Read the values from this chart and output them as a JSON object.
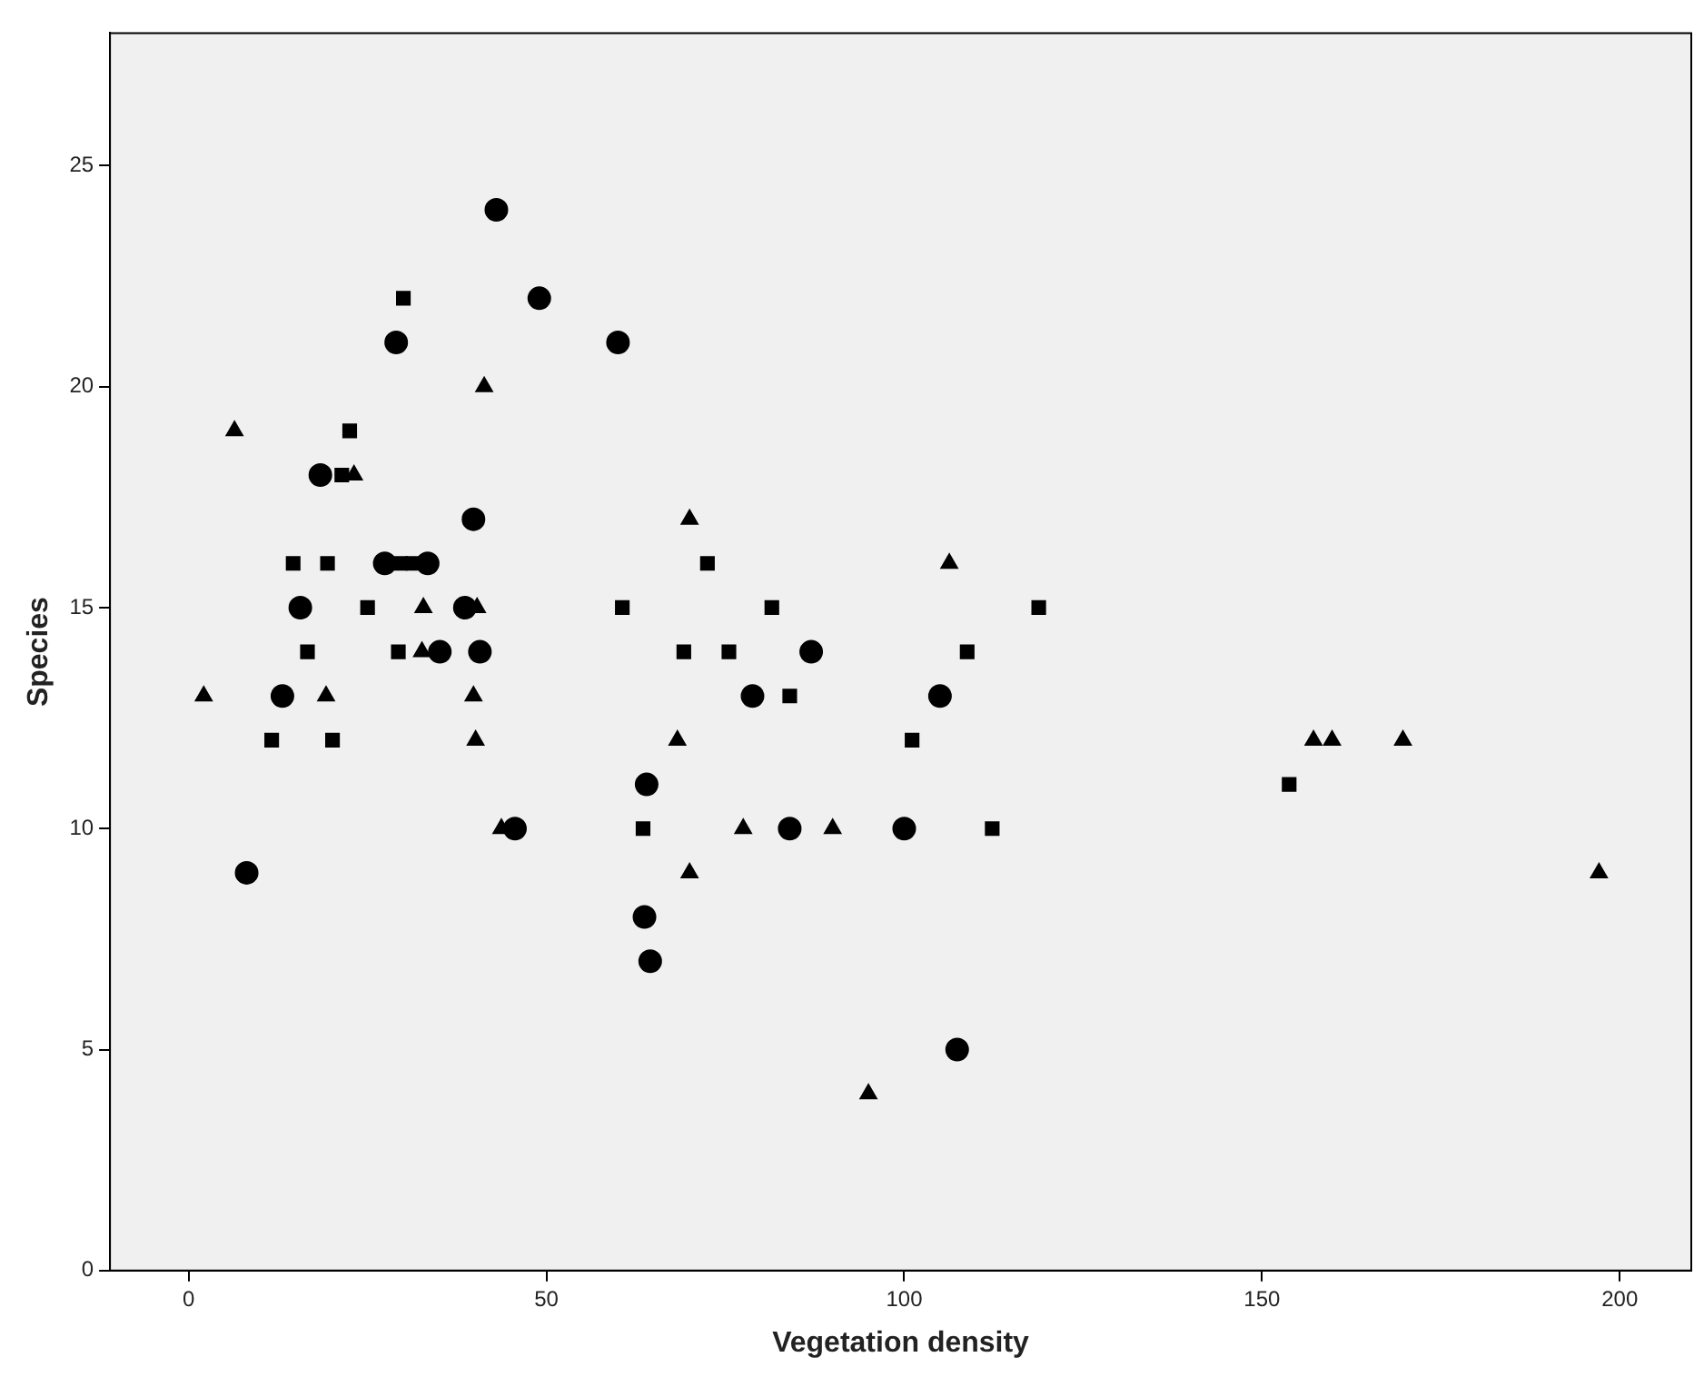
{
  "chart_data": {
    "type": "scatter",
    "xlabel": "Vegetation density",
    "ylabel": "Species",
    "xlim": [
      -11,
      210
    ],
    "ylim": [
      0,
      28
    ],
    "xticks": [
      0,
      50,
      100,
      150,
      200
    ],
    "yticks": [
      0,
      5,
      10,
      15,
      20,
      25
    ],
    "grid": false,
    "series": [
      {
        "color": "#000000",
        "marker": "circle",
        "x": [
          43,
          29,
          18.4,
          39.8,
          27.4,
          33.4,
          15.6,
          38.6,
          35.1,
          40.7,
          13.1,
          45.6,
          8.1,
          49,
          60,
          87,
          78.8,
          64,
          84,
          63.7,
          64.5,
          105,
          100,
          107.4
        ],
        "values": [
          24,
          21,
          18,
          17,
          16,
          16,
          15,
          15,
          14,
          14,
          13,
          10,
          9,
          22,
          21,
          14,
          13,
          11,
          10,
          8,
          7,
          13,
          10,
          5
        ]
      },
      {
        "color": "#000000",
        "marker": "square",
        "x": [
          30,
          22.5,
          21.4,
          14.6,
          19.4,
          29.6,
          31.3,
          25,
          16.6,
          29.3,
          11.6,
          20.1,
          72.5,
          60.6,
          81.5,
          69.2,
          75.5,
          84,
          63.5,
          118.8,
          108.8,
          101.1,
          112.3,
          153.8
        ],
        "values": [
          22,
          19,
          18,
          16,
          16,
          16,
          16,
          15,
          14,
          14,
          12,
          12,
          16,
          15,
          15,
          14,
          14,
          13,
          10,
          15,
          14,
          12,
          10,
          11
        ]
      },
      {
        "color": "#000000",
        "marker": "triangle",
        "x": [
          41.3,
          6.4,
          23.1,
          32.8,
          40.3,
          32.6,
          2.1,
          19.2,
          39.8,
          40.1,
          43.7,
          70,
          68.3,
          77.5,
          90,
          70,
          106.3,
          95,
          157.2,
          159.8,
          169.7,
          197.1
        ],
        "values": [
          20,
          19,
          18,
          15,
          15,
          14,
          13,
          13,
          13,
          12,
          10,
          17,
          12,
          10,
          10,
          9,
          16,
          4,
          12,
          12,
          12,
          9
        ]
      }
    ]
  }
}
